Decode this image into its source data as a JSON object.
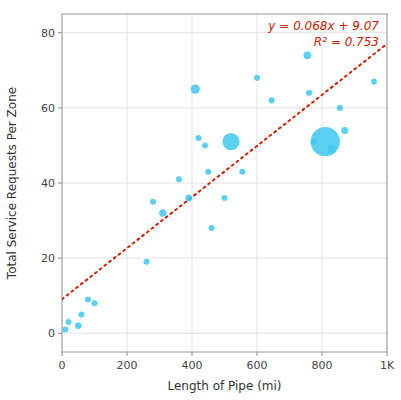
{
  "chart_data": {
    "type": "scatter",
    "x_label": "Length of Pipe (mi)",
    "y_label": "Total Service Requests Per Zone",
    "annotations": [
      "y = 0.068x + 9.07",
      "R² = 0.753"
    ],
    "series": [
      {
        "type": "scatter",
        "color": "#40C8F0",
        "x": [
          10,
          20,
          50,
          60,
          80,
          100,
          260,
          280,
          310,
          360,
          390,
          410,
          420,
          440,
          450,
          460,
          500,
          520,
          555,
          600,
          645,
          755,
          760,
          775,
          810,
          830,
          855,
          870,
          960
        ],
        "values": [
          1,
          3,
          2,
          5,
          9,
          8,
          19,
          35,
          32,
          41,
          36,
          65,
          52,
          50,
          43,
          28,
          36,
          51,
          43,
          68,
          62,
          74,
          64,
          51,
          51,
          49,
          60,
          54,
          67
        ],
        "sizes": [
          15,
          15,
          18,
          15,
          15,
          15,
          15,
          15,
          22,
          15,
          20,
          35,
          15,
          15,
          15,
          15,
          15,
          120,
          15,
          15,
          15,
          25,
          15,
          15,
          350,
          30,
          15,
          20,
          15
        ]
      },
      {
        "type": "line",
        "color": "#CC2200",
        "line_style": "dotted",
        "x": [
          0,
          1000
        ],
        "values": [
          9.07,
          77.07
        ]
      }
    ],
    "xlim": [
      0,
      1000
    ],
    "ylim": [
      -5,
      85
    ],
    "xticks": [
      0,
      200,
      400,
      600,
      800,
      {
        "value": 1000,
        "label": "1K"
      }
    ],
    "yticks": [
      0,
      20,
      40,
      60,
      80
    ],
    "grid": true
  }
}
